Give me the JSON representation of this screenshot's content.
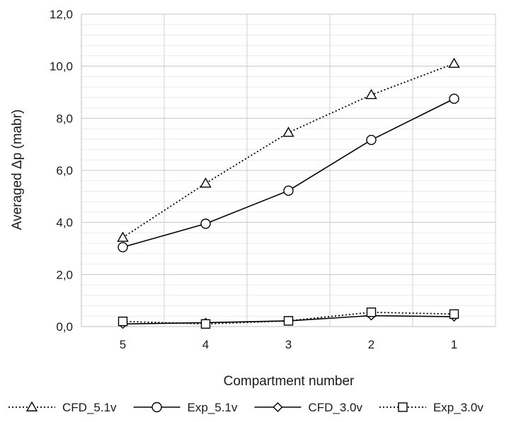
{
  "chart_data": {
    "type": "line",
    "xlabel": "Compartment number",
    "ylabel": "Averaged Δp (mabr)",
    "categories": [
      "5",
      "4",
      "3",
      "2",
      "1"
    ],
    "ylim": [
      0,
      12
    ],
    "yticks": [
      "0,0",
      "2,0",
      "4,0",
      "6,0",
      "8,0",
      "10,0",
      "12,0"
    ],
    "grid": true,
    "legend_position": "bottom",
    "series": [
      {
        "name": "CFD_5.1v",
        "marker": "triangle",
        "line": "dotted",
        "values": [
          3.42,
          5.5,
          7.45,
          8.9,
          10.1
        ]
      },
      {
        "name": "Exp_5.1v",
        "marker": "circle",
        "line": "solid",
        "values": [
          3.05,
          3.95,
          5.22,
          7.17,
          8.75
        ]
      },
      {
        "name": "CFD_3.0v",
        "marker": "diamond",
        "line": "solid",
        "values": [
          0.1,
          0.15,
          0.22,
          0.42,
          0.38
        ]
      },
      {
        "name": "Exp_3.0v",
        "marker": "square",
        "line": "dotted",
        "values": [
          0.2,
          0.1,
          0.22,
          0.55,
          0.48
        ]
      }
    ]
  }
}
